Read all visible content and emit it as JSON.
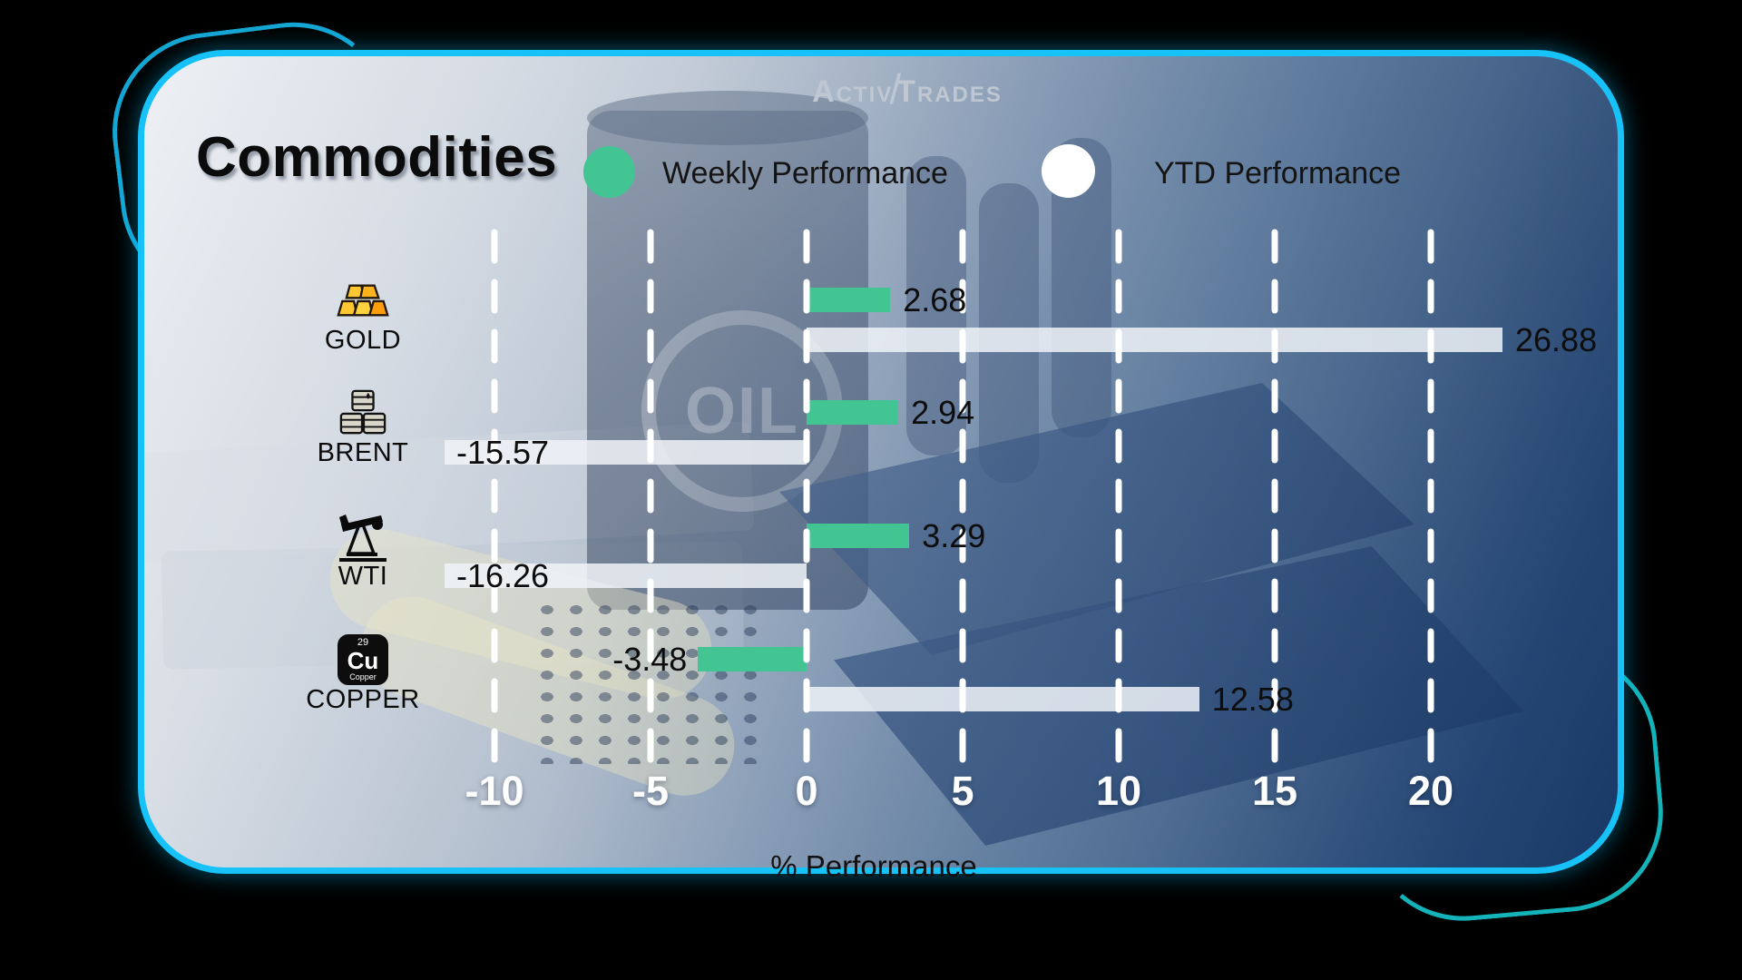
{
  "logo": {
    "text_left": "Activ",
    "text_right": "Trades"
  },
  "header": {
    "title": "Commodities"
  },
  "legend": [
    {
      "label": "Weekly Performance",
      "color": "#42c493"
    },
    {
      "label": "YTD Performance",
      "color": "#ffffff"
    }
  ],
  "copper_element": {
    "atomic_number": "29",
    "symbol": "Cu",
    "label": "Copper"
  },
  "chart_data": {
    "type": "bar",
    "orientation": "horizontal",
    "title": "Commodities",
    "xlabel": "% Performance",
    "x_ticks": [
      -10,
      -5,
      0,
      5,
      10,
      15,
      20
    ],
    "xlim_visible": [
      -11.6,
      22.3
    ],
    "grid": "dashed-white-vertical-lines",
    "legend_position": "top",
    "categories": [
      "GOLD",
      "BRENT",
      "WTI",
      "COPPER"
    ],
    "icons": [
      "gold-bars",
      "oil-barrels",
      "pumpjack",
      "copper-element"
    ],
    "series": [
      {
        "name": "Weekly Performance",
        "color": "#42c493",
        "values": [
          2.68,
          2.94,
          3.29,
          -3.48
        ]
      },
      {
        "name": "YTD Performance",
        "color": "#eef1f6",
        "values": [
          26.88,
          -15.57,
          -16.26,
          12.58
        ]
      }
    ]
  },
  "colors": {
    "weekly_bar": "#42c493",
    "ytd_bar": "rgba(240,243,248,0.85)",
    "card_border": "#16c2f8",
    "tick_text": "#ffffff",
    "value_text": "#0d0d0d"
  }
}
